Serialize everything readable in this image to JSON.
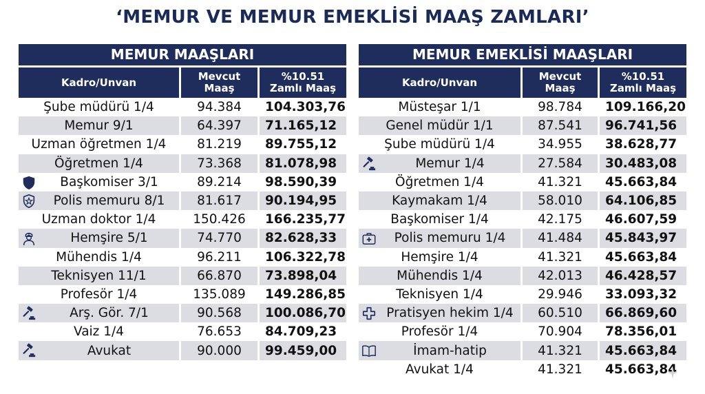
{
  "title": "‘MEMUR VE MEMUR EMEKLİSİ MAAŞ ZAMLARI’",
  "left": {
    "heading": "MEMUR MAAŞLARI",
    "col1": "Kadro/Unvan",
    "col2_a": "Mevcut",
    "col2_b": "Maaş",
    "col3_a": "%10.51",
    "col3_b": "Zamlı Maaş",
    "rows": [
      {
        "name": "Şube müdürü 1/4",
        "current": "94.384",
        "raised": "104.303,76",
        "icon": ""
      },
      {
        "name": "Memur 9/1",
        "current": "64.397",
        "raised": "71.165,12",
        "icon": ""
      },
      {
        "name": "Uzman öğretmen 1/4",
        "current": "81.219",
        "raised": "89.755,12",
        "icon": ""
      },
      {
        "name": "Öğretmen 1/4",
        "current": "73.368",
        "raised": "81.078,98",
        "icon": ""
      },
      {
        "name": "Başkomiser 3/1",
        "current": "89.214",
        "raised": "98.590,39",
        "icon": "shield-icon"
      },
      {
        "name": "Polis memuru 8/1",
        "current": "81.617",
        "raised": "90.194,95",
        "icon": "badge-icon"
      },
      {
        "name": "Uzman doktor 1/4",
        "current": "150.426",
        "raised": "166.235,77",
        "icon": ""
      },
      {
        "name": "Hemşire 5/1",
        "current": "74.770",
        "raised": "82.628,33",
        "icon": "nurse-icon"
      },
      {
        "name": "Mühendis 1/4",
        "current": "96.211",
        "raised": "106.322,78",
        "icon": ""
      },
      {
        "name": "Teknisyen 11/1",
        "current": "66.870",
        "raised": "73.898,04",
        "icon": ""
      },
      {
        "name": "Profesör 1/4",
        "current": "135.089",
        "raised": "149.286,85",
        "icon": ""
      },
      {
        "name": "Arş. Gör. 7/1",
        "current": "90.568",
        "raised": "100.086,70",
        "icon": "gavel-icon"
      },
      {
        "name": "Vaiz 1/4",
        "current": "76.653",
        "raised": "84.709,23",
        "icon": ""
      },
      {
        "name": "Avukat",
        "current": "90.000",
        "raised": "99.459,00",
        "icon": "gavel-icon"
      }
    ]
  },
  "right": {
    "heading": "MEMUR EMEKLİSİ MAAŞLARI",
    "col1": "Kadro/Unvan",
    "col2_a": "Mevcut",
    "col2_b": "Maaş",
    "col3_a": "%10.51",
    "col3_b": "Zamlı Maaş",
    "rows": [
      {
        "name": "Müsteşar 1/1",
        "current": "98.784",
        "raised": "109.166,20",
        "icon": ""
      },
      {
        "name": "Genel müdür 1/1",
        "current": "87.541",
        "raised": "96.741,56",
        "icon": ""
      },
      {
        "name": "Şube müdürü 1/4",
        "current": "34.955",
        "raised": "38.628,77",
        "icon": ""
      },
      {
        "name": "Memur 1/4",
        "current": "27.584",
        "raised": "30.483,08",
        "icon": "gavel-icon"
      },
      {
        "name": "Öğretmen 1/4",
        "current": "41.321",
        "raised": "45.663,84",
        "icon": ""
      },
      {
        "name": "Kaymakam 1/4",
        "current": "58.010",
        "raised": "64.106,85",
        "icon": ""
      },
      {
        "name": "Başkomiser 1/4",
        "current": "42.175",
        "raised": "46.607,59",
        "icon": ""
      },
      {
        "name": "Polis memuru 1/4",
        "current": "41.484",
        "raised": "45.843,97",
        "icon": "medkit-icon"
      },
      {
        "name": "Hemşire 1/4",
        "current": "41.321",
        "raised": "45.663,84",
        "icon": ""
      },
      {
        "name": "Mühendis 1/4",
        "current": "42.013",
        "raised": "46.428,57",
        "icon": ""
      },
      {
        "name": "Teknisyen 1/4",
        "current": "29.946",
        "raised": "33.093,32",
        "icon": ""
      },
      {
        "name": "Pratisyen hekim 1/4",
        "current": "60.510",
        "raised": "66.869,60",
        "icon": "medical-cross-icon"
      },
      {
        "name": "Profesör 1/4",
        "current": "70.904",
        "raised": "78.356,01",
        "icon": ""
      },
      {
        "name": "İmam-hatip",
        "current": "41.321",
        "raised": "45.663,84",
        "icon": "book-icon"
      },
      {
        "name": "Avukat 1/4",
        "current": "41.321",
        "raised": "45.663,84",
        "icon": ""
      }
    ]
  }
}
